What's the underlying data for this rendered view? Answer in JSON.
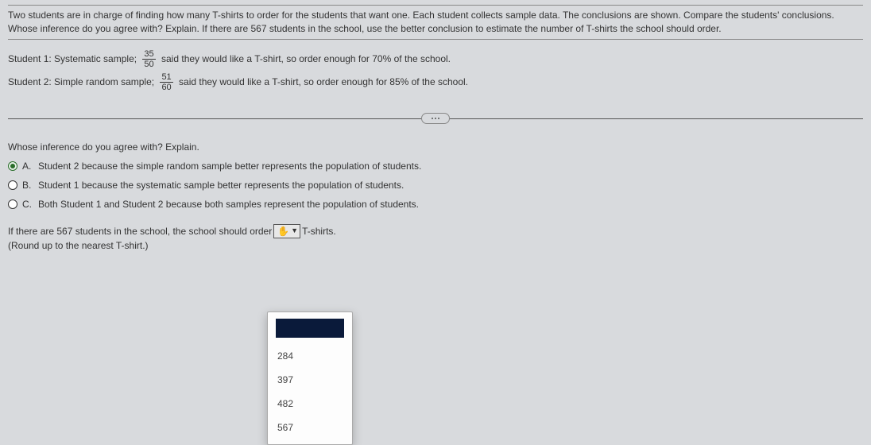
{
  "intro": {
    "line1": "Two students are in charge of finding how many T-shirts to order for the students that want one. Each student collects sample data. The conclusions are shown. Compare the students' conclusions.",
    "line2": "Whose inference do you agree with? Explain. If there are 567 students in the school, use the better conclusion to estimate the number of T-shirts the school should order."
  },
  "sample1": {
    "label": "Student 1: Systematic sample; ",
    "num": "35",
    "den": "50",
    "tail": " said they would like a T-shirt, so order enough for 70% of the school."
  },
  "sample2": {
    "label": "Student 2: Simple random sample; ",
    "num": "51",
    "den": "60",
    "tail": " said they would like a T-shirt, so order enough for 85% of the school."
  },
  "question": "Whose inference do you agree with? Explain.",
  "choices": {
    "a_letter": "A.",
    "a_text": "Student 2 because the simple random sample better represents the population of students.",
    "b_letter": "B.",
    "b_text": "Student 1 because the systematic sample better represents the population of students.",
    "c_letter": "C.",
    "c_text": "Both Student 1 and Student 2 because both samples represent the population of students."
  },
  "fillin": {
    "pre": "If there are 567 students in the school, the school should order ",
    "post": " T-shirts.",
    "note": "(Round up to the nearest T-shirt.)"
  },
  "dropdown": {
    "opt1": "284",
    "opt2": "397",
    "opt3": "482",
    "opt4": "567"
  }
}
